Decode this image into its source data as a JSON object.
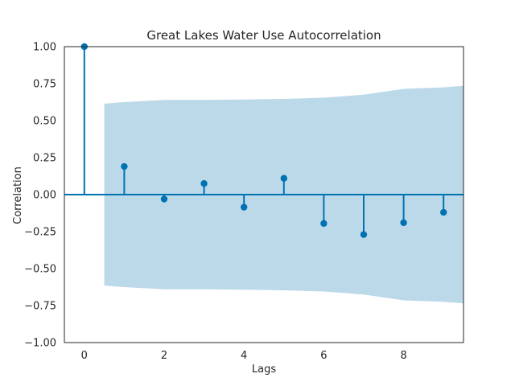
{
  "chart_data": {
    "type": "acf_stem",
    "title": "Great Lakes Water Use Autocorrelation",
    "xlabel": "Lags",
    "ylabel": "Correlation",
    "xlim": [
      -0.5,
      9.5
    ],
    "ylim": [
      -1.0,
      1.0
    ],
    "xticks": [
      "0",
      "2",
      "4",
      "6",
      "8"
    ],
    "yticks": [
      "1.00",
      "0.75",
      "0.50",
      "0.25",
      "0.00",
      "−0.25",
      "−0.50",
      "−0.75",
      "−1.00"
    ],
    "lags": [
      0,
      1,
      2,
      3,
      4,
      5,
      6,
      7,
      8,
      9
    ],
    "values": [
      1.0,
      0.19,
      -0.03,
      0.075,
      -0.085,
      0.11,
      -0.195,
      -0.27,
      -0.19,
      -0.12
    ],
    "confidence_band": {
      "lags": [
        0.5,
        1,
        2,
        3,
        4,
        5,
        6,
        7,
        8,
        9,
        9.5
      ],
      "upper": [
        0.615,
        0.625,
        0.64,
        0.64,
        0.643,
        0.647,
        0.655,
        0.675,
        0.715,
        0.725,
        0.735
      ]
    },
    "grid": false,
    "colors": {
      "stem": "#0072B2",
      "band": "#bcd9ea",
      "frame": "#262626"
    }
  }
}
